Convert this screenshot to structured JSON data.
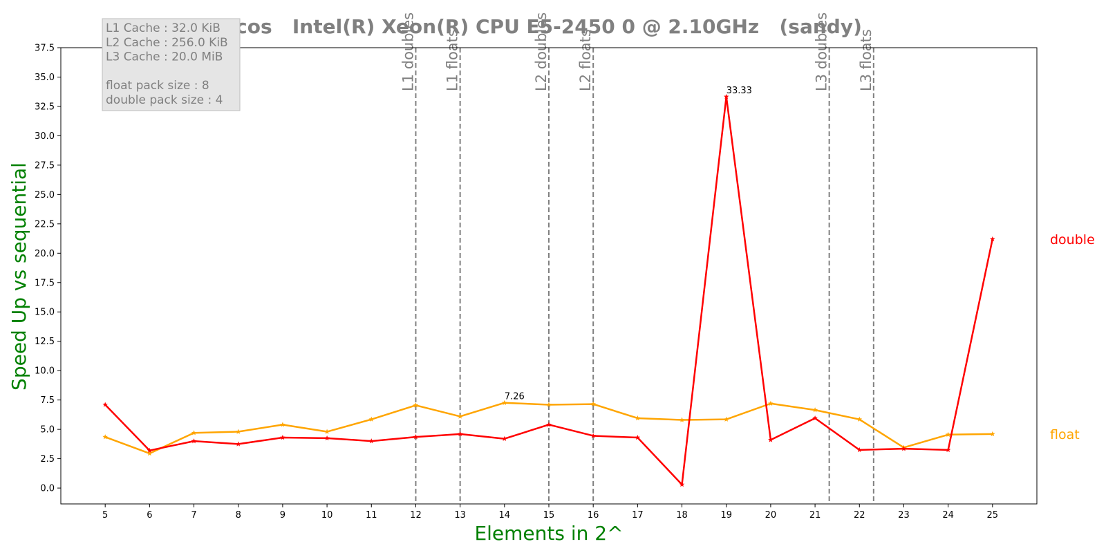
{
  "chart_data": {
    "type": "line",
    "title": "cos   Intel(R) Xeon(R) CPU E5-2450 0 @ 2.10GHz   (sandy)",
    "xlabel": "Elements in 2^",
    "ylabel": "Speed Up vs sequential",
    "xlim": [
      4,
      26
    ],
    "ylim": [
      -1.35,
      37.5
    ],
    "x": [
      5,
      6,
      7,
      8,
      9,
      10,
      11,
      12,
      13,
      14,
      15,
      16,
      17,
      18,
      19,
      20,
      21,
      22,
      23,
      24,
      25
    ],
    "xticks": [
      "5",
      "6",
      "7",
      "8",
      "9",
      "10",
      "11",
      "12",
      "13",
      "14",
      "15",
      "16",
      "17",
      "18",
      "19",
      "20",
      "21",
      "22",
      "23",
      "24",
      "25"
    ],
    "yticks": [
      "0.0",
      "2.5",
      "5.0",
      "7.5",
      "10.0",
      "12.5",
      "15.0",
      "17.5",
      "20.0",
      "22.5",
      "25.0",
      "27.5",
      "30.0",
      "32.5",
      "35.0",
      "37.5"
    ],
    "yticks_values": [
      0,
      2.5,
      5,
      7.5,
      10,
      12.5,
      15,
      17.5,
      20,
      22.5,
      25,
      27.5,
      30,
      32.5,
      35,
      37.5
    ],
    "grid": false,
    "series": [
      {
        "name": "double",
        "color": "#ff0000",
        "values": [
          7.1,
          3.2,
          4.0,
          3.75,
          4.3,
          4.25,
          4.0,
          4.35,
          4.6,
          4.2,
          5.4,
          4.45,
          4.3,
          0.3,
          33.33,
          4.1,
          5.95,
          3.25,
          3.35,
          3.25,
          21.2
        ]
      },
      {
        "name": "float",
        "color": "#ffa500",
        "values": [
          4.35,
          2.95,
          4.7,
          4.8,
          5.4,
          4.8,
          5.85,
          7.05,
          6.1,
          7.26,
          7.1,
          7.15,
          5.95,
          5.8,
          5.85,
          7.2,
          6.65,
          5.85,
          3.45,
          4.55,
          4.6
        ]
      }
    ],
    "annotations": [
      {
        "text": "33.33",
        "x": 19,
        "y": 33.33
      },
      {
        "text": "7.26",
        "x": 14,
        "y": 7.26
      }
    ],
    "cache_lines": [
      {
        "label": "L1 doubles",
        "x": 12
      },
      {
        "label": "L1 floats",
        "x": 13
      },
      {
        "label": "L2 doubles",
        "x": 15
      },
      {
        "label": "L2 floats",
        "x": 16
      },
      {
        "label": "L3 doubles",
        "x": 21.32
      },
      {
        "label": "L3 floats",
        "x": 22.32
      }
    ],
    "info_box": [
      "L1 Cache : 32.0 KiB",
      "L2 Cache : 256.0 KiB",
      "L3 Cache : 20.0 MiB",
      "",
      "float pack size : 8",
      "double pack size : 4"
    ],
    "legend_placement": "right, outside plot, labels at series end values",
    "colors": {
      "axis_label": "#008000",
      "cache_line": "#808080",
      "title": "#808080",
      "info_box_bg": "#e5e5e5"
    }
  }
}
